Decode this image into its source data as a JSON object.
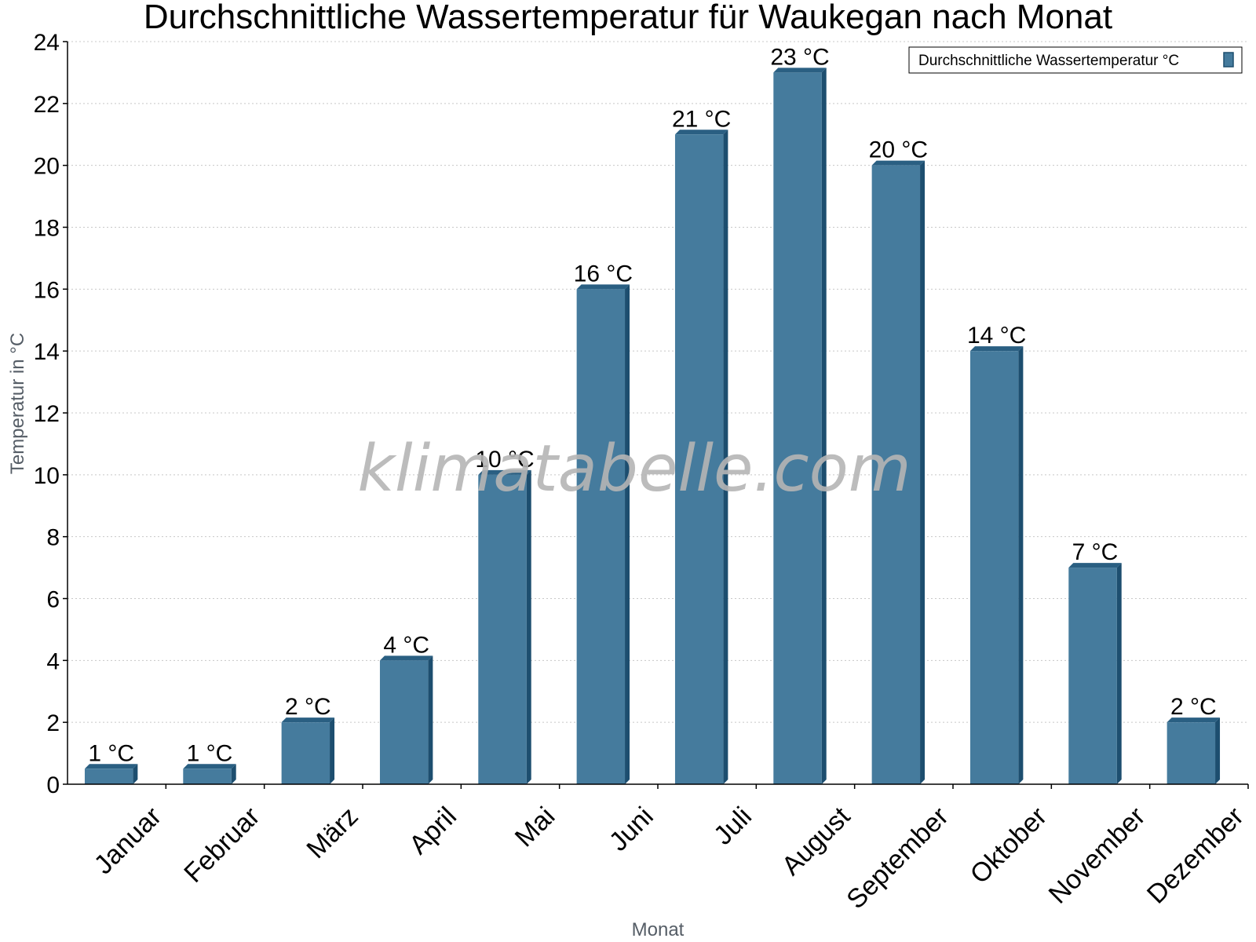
{
  "chart_data": {
    "type": "bar",
    "title": "Durchschnittliche Wassertemperatur für Waukegan nach Monat",
    "xlabel": "Monat",
    "ylabel": "Temperatur in °C",
    "categories": [
      "Januar",
      "Februar",
      "März",
      "April",
      "Mai",
      "Juni",
      "Juli",
      "August",
      "September",
      "Oktober",
      "November",
      "Dezember"
    ],
    "values": [
      0.5,
      0.5,
      2,
      4,
      10,
      16,
      21,
      23,
      20,
      14,
      7,
      2
    ],
    "value_labels": [
      "1 °C",
      "1 °C",
      "2 °C",
      "4 °C",
      "10 °C",
      "16 °C",
      "21 °C",
      "23 °C",
      "20 °C",
      "14 °C",
      "7 °C",
      "2 °C"
    ],
    "ylim": [
      0,
      24
    ],
    "yticks": [
      0,
      2,
      4,
      6,
      8,
      10,
      12,
      14,
      16,
      18,
      20,
      22,
      24
    ],
    "grid": true,
    "legend": {
      "position": "top-right",
      "entries": [
        "Durchschnittliche Wassertemperatur °C"
      ]
    },
    "colors": {
      "bar_front": "#457b9d",
      "bar_side": "#1d4e6f",
      "bar_top": "#2a5f82"
    },
    "watermark": "klimatabelle.com"
  }
}
